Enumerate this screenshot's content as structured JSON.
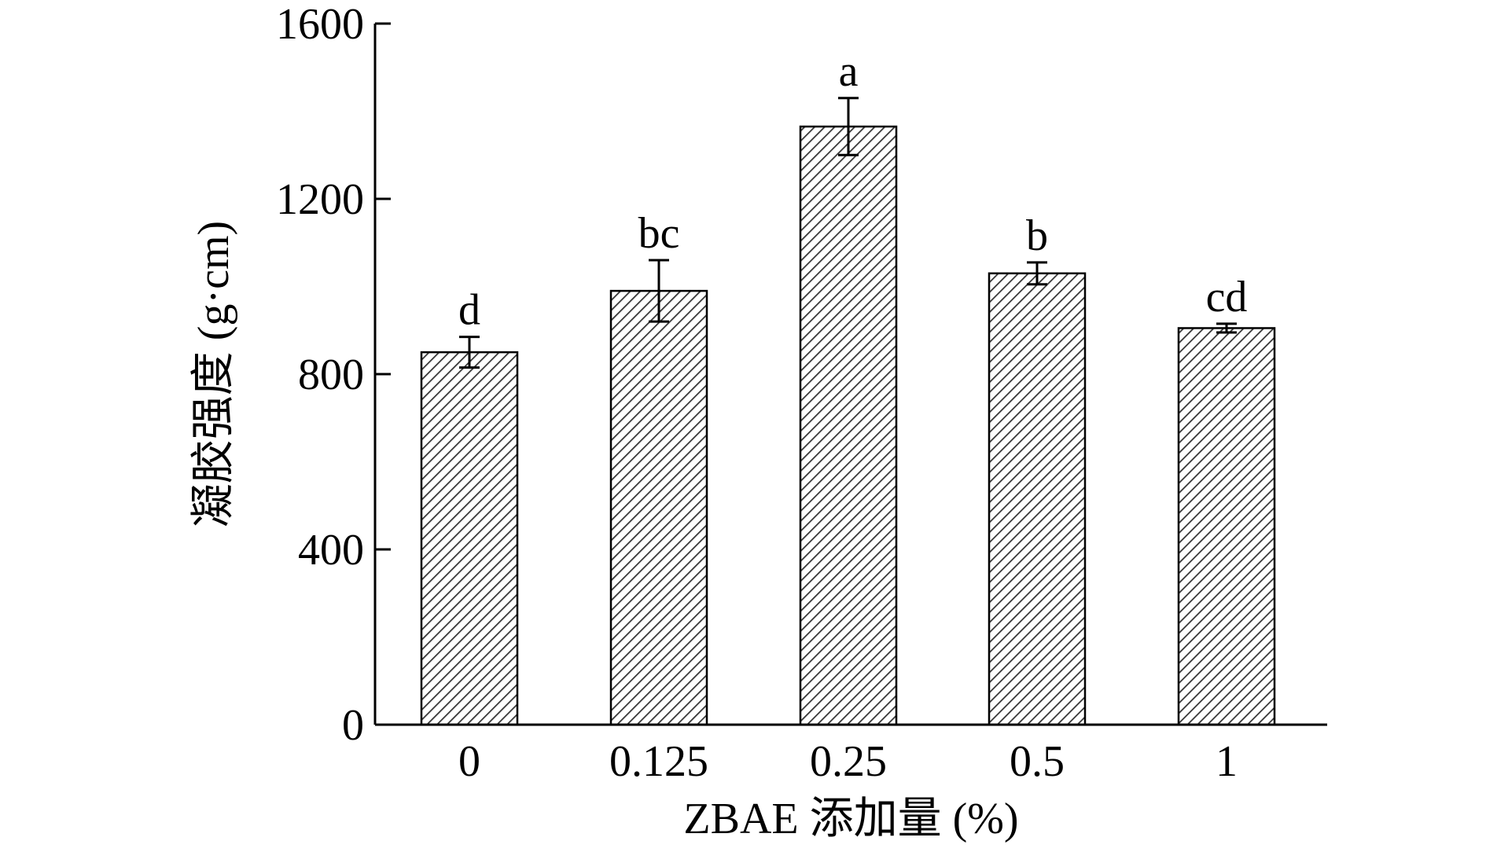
{
  "chart_data": {
    "type": "bar",
    "title": "",
    "xlabel": "ZBAE 添加量 (%)",
    "ylabel": "凝胶强度 (g·cm)",
    "categories": [
      "0",
      "0.125",
      "0.25",
      "0.5",
      "1"
    ],
    "values": [
      850,
      990,
      1365,
      1030,
      905
    ],
    "errors": [
      35,
      70,
      65,
      25,
      10
    ],
    "significance": [
      "d",
      "bc",
      "a",
      "b",
      "cd"
    ],
    "ylim": [
      0,
      1600
    ],
    "yticks": [
      0,
      400,
      800,
      1200,
      1600
    ],
    "grid": false,
    "legend": "none",
    "bar_fill": "hatched",
    "colors": {
      "bar_stroke": "#000000",
      "hatch": "#333333",
      "background": "#ffffff"
    }
  }
}
